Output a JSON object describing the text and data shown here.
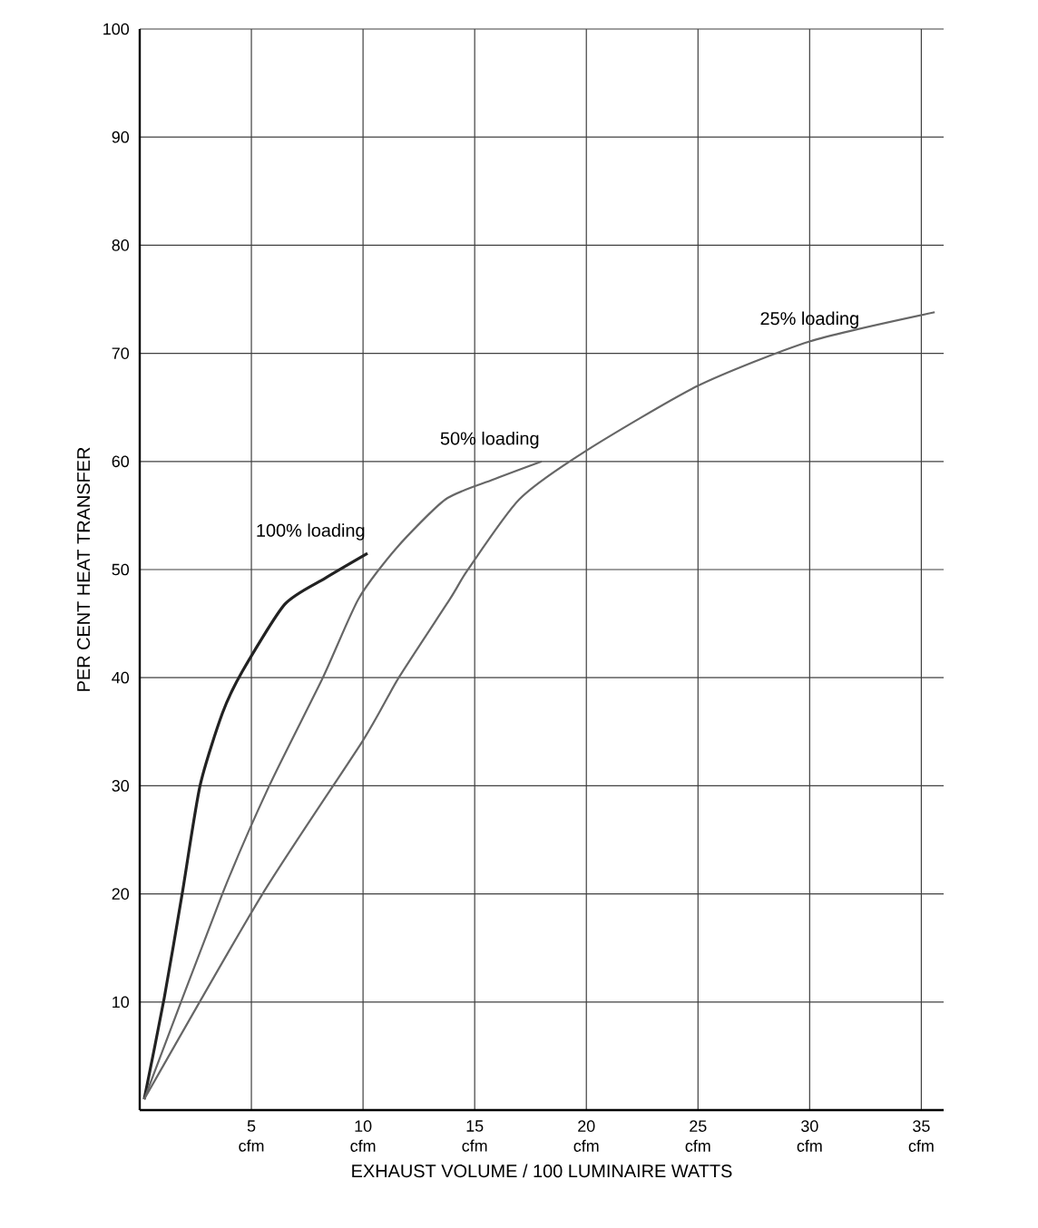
{
  "chart_data": {
    "type": "line",
    "xlabel": "EXHAUST VOLUME / 100 LUMINAIRE WATTS",
    "ylabel": "PER CENT HEAT TRANSFER",
    "xlim": [
      0,
      36
    ],
    "ylim": [
      0,
      100
    ],
    "xticks": [
      {
        "value": 5,
        "label": "5 cfm"
      },
      {
        "value": 10,
        "label": "10 cfm"
      },
      {
        "value": 15,
        "label": "15 cfm"
      },
      {
        "value": 20,
        "label": "20 cfm"
      },
      {
        "value": 25,
        "label": "25 cfm"
      },
      {
        "value": 30,
        "label": "30 cfm"
      },
      {
        "value": 35,
        "label": "35 cfm"
      }
    ],
    "yticks": [
      10,
      20,
      30,
      40,
      50,
      60,
      70,
      80,
      90,
      100
    ],
    "grid": true,
    "legend": false,
    "marker": "none",
    "line_style": "solid",
    "series": [
      {
        "name": "100% loading",
        "color": "#222222",
        "x": [
          0.2,
          1.1,
          1.9,
          2.7,
          3.7,
          4.6,
          6.5,
          8.3,
          10.2
        ],
        "values": [
          1,
          10.4,
          20,
          30,
          36.7,
          40.6,
          46.8,
          49.2,
          51.5
        ]
      },
      {
        "name": "50% loading",
        "color": "#666666",
        "x": [
          0.2,
          3.7,
          5.8,
          8.2,
          9.8,
          11.5,
          13.7,
          15.8,
          18
        ],
        "values": [
          1,
          20,
          30,
          40,
          47.3,
          52,
          56.5,
          58.3,
          60
        ]
      },
      {
        "name": "25% loading",
        "color": "#666666",
        "x": [
          0.2,
          5.5,
          10,
          11.6,
          13.9,
          14.7,
          17,
          20,
          25,
          30,
          35.6
        ],
        "values": [
          1,
          20,
          34.2,
          40,
          47.3,
          50,
          56.5,
          61,
          67,
          71.1,
          73.8
        ]
      }
    ]
  }
}
